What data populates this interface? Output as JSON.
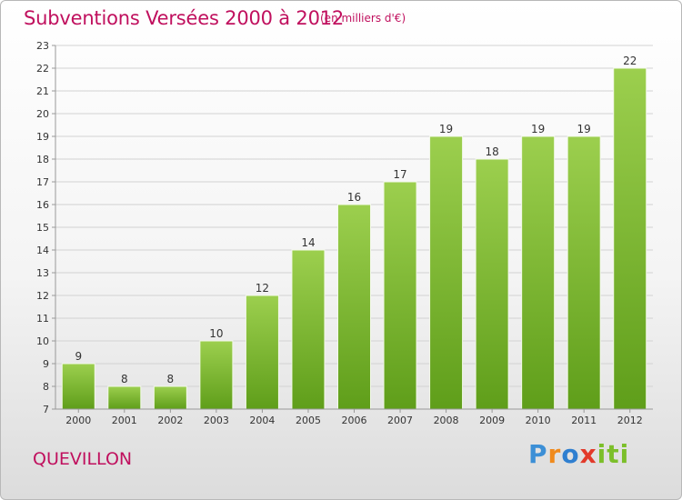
{
  "header": {
    "title": "Subventions Versées 2000 à 2012",
    "unit": "(en milliers d'€)"
  },
  "footer": {
    "town": "QUEVILLON",
    "brand": "Proxiti"
  },
  "colors": {
    "title": "#c0105e",
    "bar_light": "#9ccf4e",
    "bar_dark": "#5f9e1a",
    "grid": "#d2d2d2",
    "axis": "#999999"
  },
  "chart_data": {
    "type": "bar",
    "title": "Subventions Versées 2000 à 2012",
    "subtitle": "(en milliers d'€)",
    "categories": [
      "2000",
      "2001",
      "2002",
      "2003",
      "2004",
      "2005",
      "2006",
      "2007",
      "2008",
      "2009",
      "2010",
      "2011",
      "2012"
    ],
    "values": [
      9,
      8,
      8,
      10,
      12,
      14,
      16,
      17,
      19,
      18,
      19,
      19,
      22
    ],
    "ylim": [
      7,
      23
    ],
    "yticks": [
      7,
      8,
      9,
      10,
      11,
      12,
      13,
      14,
      15,
      16,
      17,
      18,
      19,
      20,
      21,
      22,
      23
    ],
    "grid": true,
    "data_labels": true
  }
}
